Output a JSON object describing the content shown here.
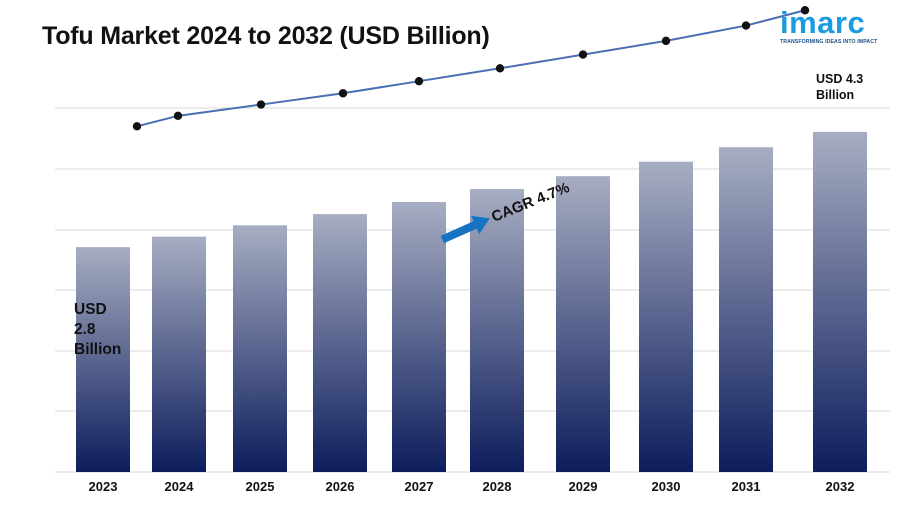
{
  "title": "Tofu Market 2024 to 2032 (USD Billion)",
  "logo": {
    "word": "imarc",
    "tagline": "TRANSFORMING IDEAS INTO IMPACT"
  },
  "annotations": {
    "start_label": "USD\n2.8\nBillion",
    "end_label": "USD 4.3\nBillion",
    "cagr_label": "CAGR 4.7%"
  },
  "colors": {
    "bar_top": "#a7adc2",
    "bar_bottom": "#0d1d5c",
    "line": "#4a6fb5",
    "marker": "#111111",
    "arrow": "#1673c4",
    "grid": "#d9d9d9",
    "logo": "#1a9be0"
  },
  "chart_data": {
    "type": "bar",
    "categories": [
      "2023",
      "2024",
      "2025",
      "2026",
      "2027",
      "2028",
      "2029",
      "2030",
      "2031",
      "2032"
    ],
    "values": [
      2.79,
      2.92,
      3.06,
      3.2,
      3.35,
      3.51,
      3.67,
      3.85,
      4.03,
      4.22
    ],
    "line_values": [
      2.8,
      2.93,
      3.07,
      3.21,
      3.36,
      3.52,
      3.69,
      3.86,
      4.05,
      4.24
    ],
    "ylim": [
      0,
      4.5
    ],
    "grid": true,
    "legend": "none"
  }
}
